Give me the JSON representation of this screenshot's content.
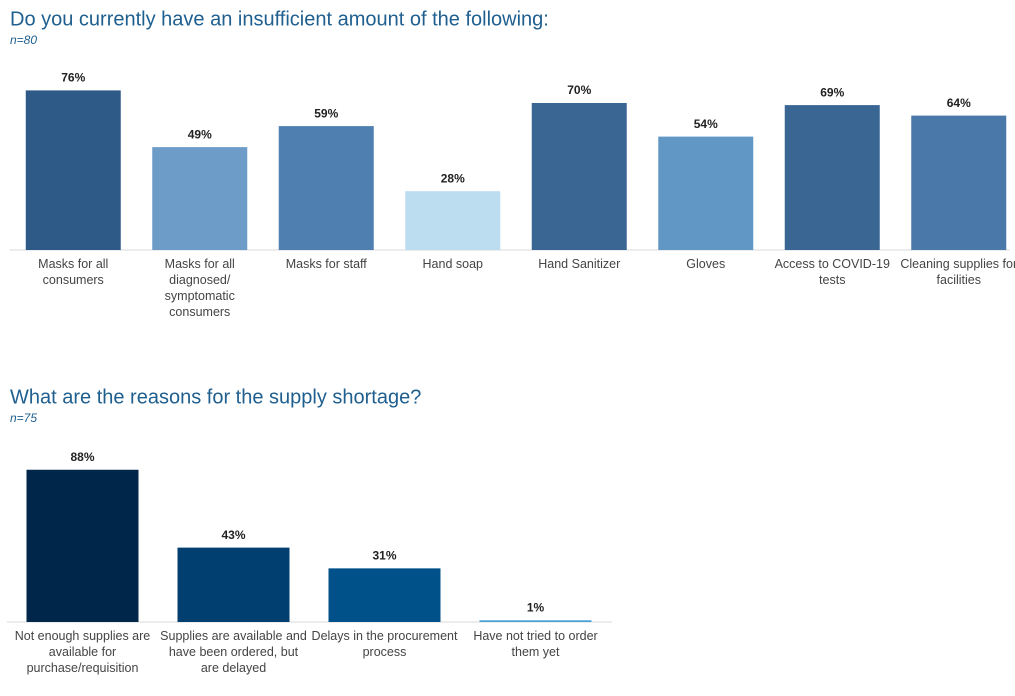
{
  "chart_data": [
    {
      "type": "bar",
      "title": "Do you currently have an insufficient amount of the following:",
      "subtitle": "n=80",
      "categories": [
        "Masks for all consumers",
        "Masks for all diagnosed/ symptomatic consumers",
        "Masks for staff",
        "Hand soap",
        "Hand Sanitizer",
        "Gloves",
        "Access to COVID-19 tests",
        "Cleaning supplies for facilities"
      ],
      "values": [
        76,
        49,
        59,
        28,
        70,
        54,
        69,
        64
      ],
      "value_labels": [
        "76%",
        "49%",
        "59%",
        "28%",
        "70%",
        "54%",
        "69%",
        "64%"
      ],
      "colors": [
        "#2e5a87",
        "#6d9cc8",
        "#4f7fb0",
        "#bcdcf0",
        "#3a6694",
        "#6197c4",
        "#3a6694",
        "#4a78a8"
      ]
    },
    {
      "type": "bar",
      "title": "What are the reasons for the supply shortage?",
      "subtitle": "n=75",
      "categories": [
        "Not enough supplies are available for purchase/requisition",
        "Supplies are available and have been ordered, but are delayed",
        "Delays in the procurement process",
        "Have not tried to order them yet"
      ],
      "values": [
        88,
        43,
        31,
        1
      ],
      "value_labels": [
        "88%",
        "43%",
        "31%",
        "1%"
      ],
      "colors": [
        "#00274a",
        "#003f6f",
        "#00508a",
        "#4aa3d8"
      ]
    }
  ]
}
